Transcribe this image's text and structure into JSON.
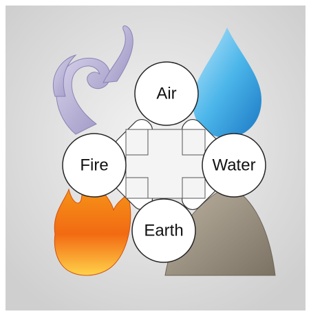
{
  "nodes": [
    {
      "label": "Air"
    },
    {
      "label": "Fire"
    },
    {
      "label": "Water"
    },
    {
      "label": "Earth"
    }
  ]
}
